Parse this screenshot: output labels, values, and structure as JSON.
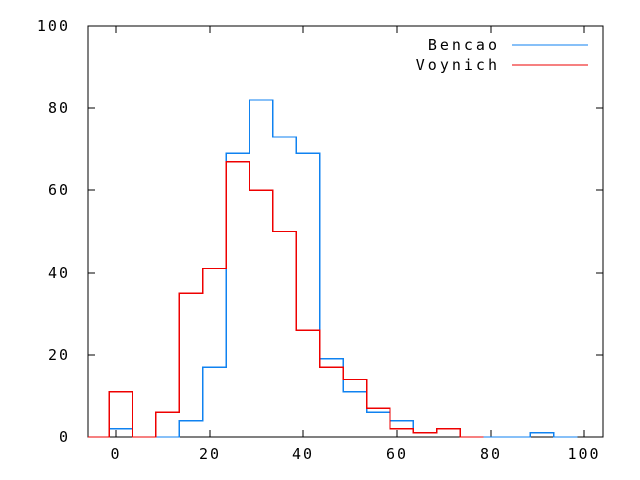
{
  "window": {
    "background": "#ffffff"
  },
  "chart_data": {
    "type": "line",
    "style": "histeps-step-histogram",
    "title": "",
    "xlabel": "",
    "ylabel": "",
    "xlim": [
      -6,
      104
    ],
    "ylim": [
      0,
      100
    ],
    "xticks": [
      "0",
      "20",
      "40",
      "60",
      "80",
      "100"
    ],
    "xtick_values": [
      0,
      20,
      40,
      60,
      80,
      100
    ],
    "yticks": [
      "0",
      "20",
      "40",
      "60",
      "80",
      "100"
    ],
    "ytick_values": [
      0,
      20,
      40,
      60,
      80,
      100
    ],
    "grid": false,
    "legend_position": "top-right-inside",
    "bin_width": 5,
    "axis_color": "#000000",
    "series": [
      {
        "name": "Bencao",
        "color": "#0f82f0",
        "x": [
          1,
          6,
          11,
          16,
          21,
          26,
          31,
          36,
          41,
          46,
          51,
          56,
          61,
          66,
          71,
          76,
          81,
          86,
          91,
          96
        ],
        "values": [
          2,
          0,
          0,
          4,
          17,
          69,
          82,
          73,
          69,
          19,
          11,
          6,
          4,
          1,
          2,
          0,
          0,
          0,
          1,
          0
        ]
      },
      {
        "name": "Voynich",
        "color": "#ee0000",
        "x": [
          1,
          6,
          11,
          16,
          21,
          26,
          31,
          36,
          41,
          46,
          51,
          56,
          61,
          66,
          71,
          76
        ],
        "values": [
          11,
          0,
          6,
          35,
          41,
          67,
          60,
          50,
          26,
          17,
          14,
          7,
          2,
          1,
          2,
          0
        ]
      }
    ]
  }
}
